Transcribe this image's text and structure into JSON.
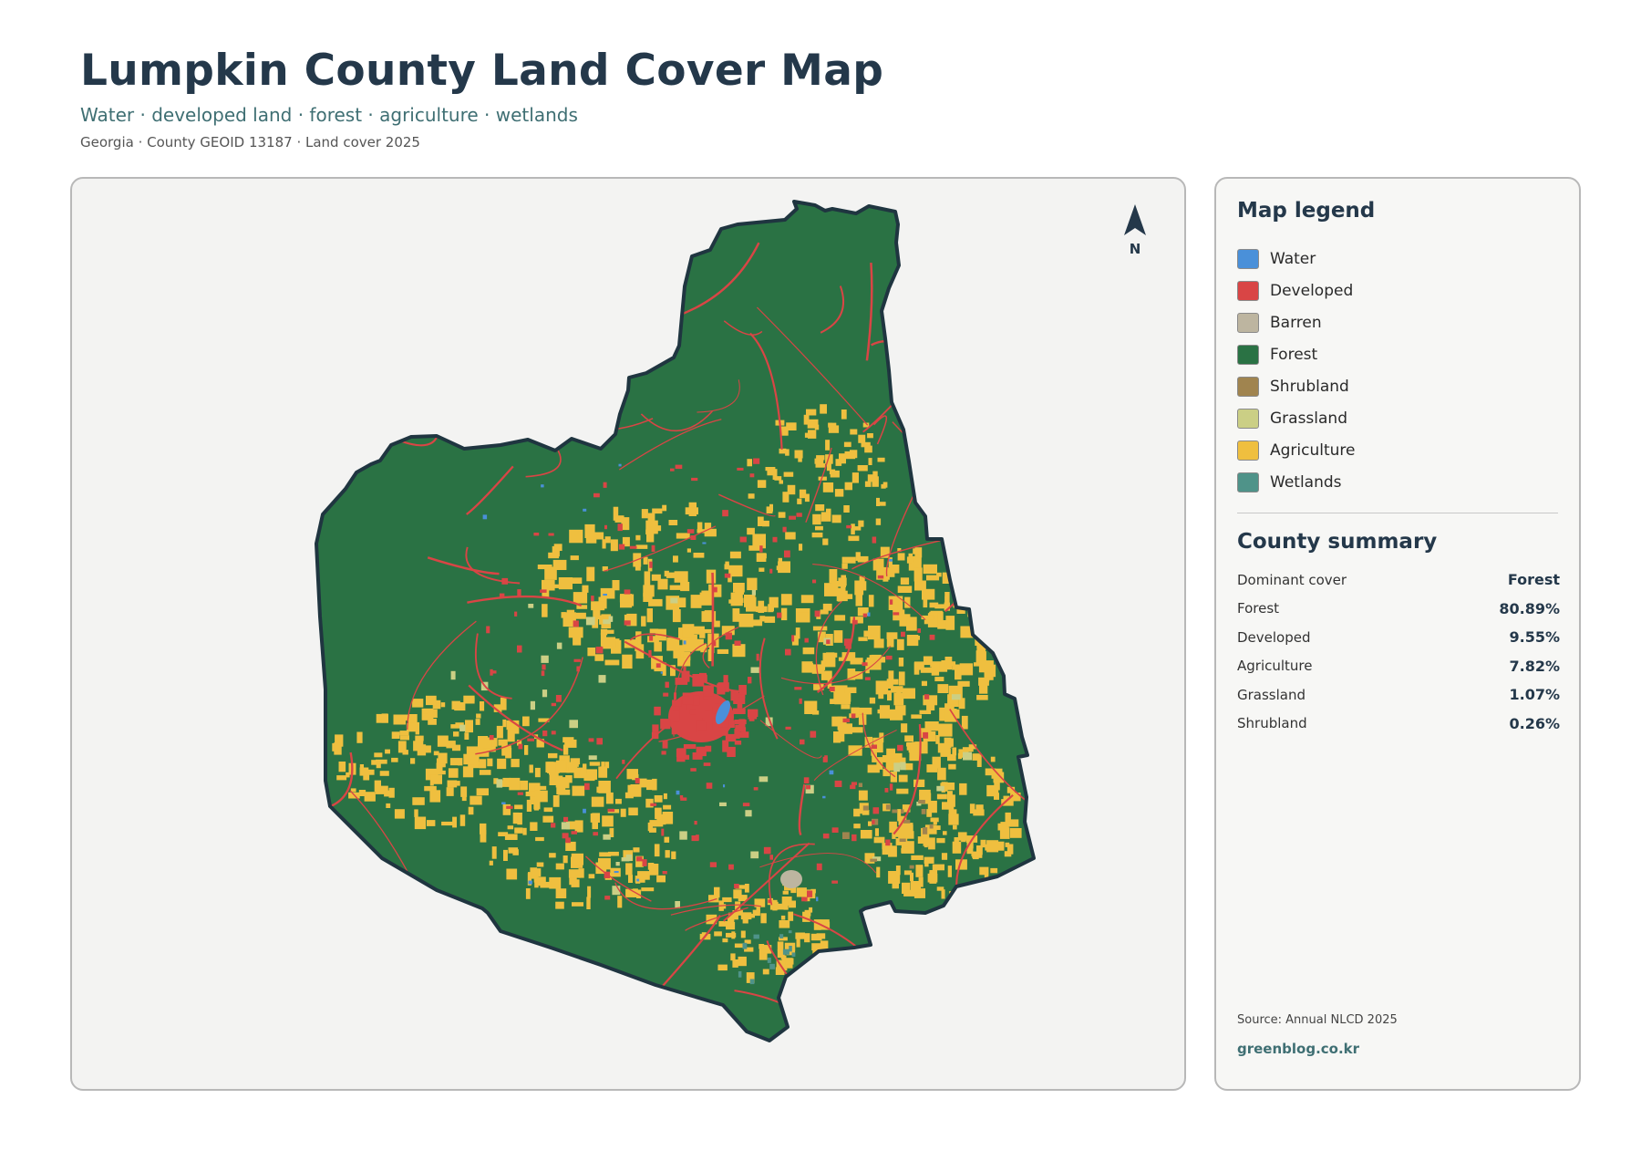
{
  "header": {
    "title": "Lumpkin County Land Cover Map",
    "subtitle": "Water · developed land · forest · agriculture · wetlands",
    "meta": "Georgia · County GEOID 13187 · Land cover 2025"
  },
  "map": {
    "north_label": "N",
    "colors": {
      "water": "#4a90d9",
      "developed": "#d94545",
      "barren": "#bdb5a0",
      "forest": "#2a7244",
      "shrubland": "#a0844f",
      "grassland": "#cbcf85",
      "agriculture": "#efbf3f",
      "wetlands": "#4f9389",
      "outline": "#1f3540",
      "background": "#f3f3f2"
    }
  },
  "legend": {
    "title": "Map legend",
    "items": [
      {
        "label": "Water",
        "color": "#4a90d9"
      },
      {
        "label": "Developed",
        "color": "#d94545"
      },
      {
        "label": "Barren",
        "color": "#bdb5a0"
      },
      {
        "label": "Forest",
        "color": "#2a7244"
      },
      {
        "label": "Shrubland",
        "color": "#a0844f"
      },
      {
        "label": "Grassland",
        "color": "#cbcf85"
      },
      {
        "label": "Agriculture",
        "color": "#efbf3f"
      },
      {
        "label": "Wetlands",
        "color": "#4f9389"
      }
    ]
  },
  "summary": {
    "title": "County summary",
    "rows": [
      {
        "label": "Dominant cover",
        "value": "Forest"
      },
      {
        "label": "Forest",
        "value": "80.89%"
      },
      {
        "label": "Developed",
        "value": "9.55%"
      },
      {
        "label": "Agriculture",
        "value": "7.82%"
      },
      {
        "label": "Grassland",
        "value": "1.07%"
      },
      {
        "label": "Shrubland",
        "value": "0.26%"
      }
    ]
  },
  "footer": {
    "source": "Source: Annual NLCD 2025",
    "brand": "greenblog.co.kr"
  }
}
